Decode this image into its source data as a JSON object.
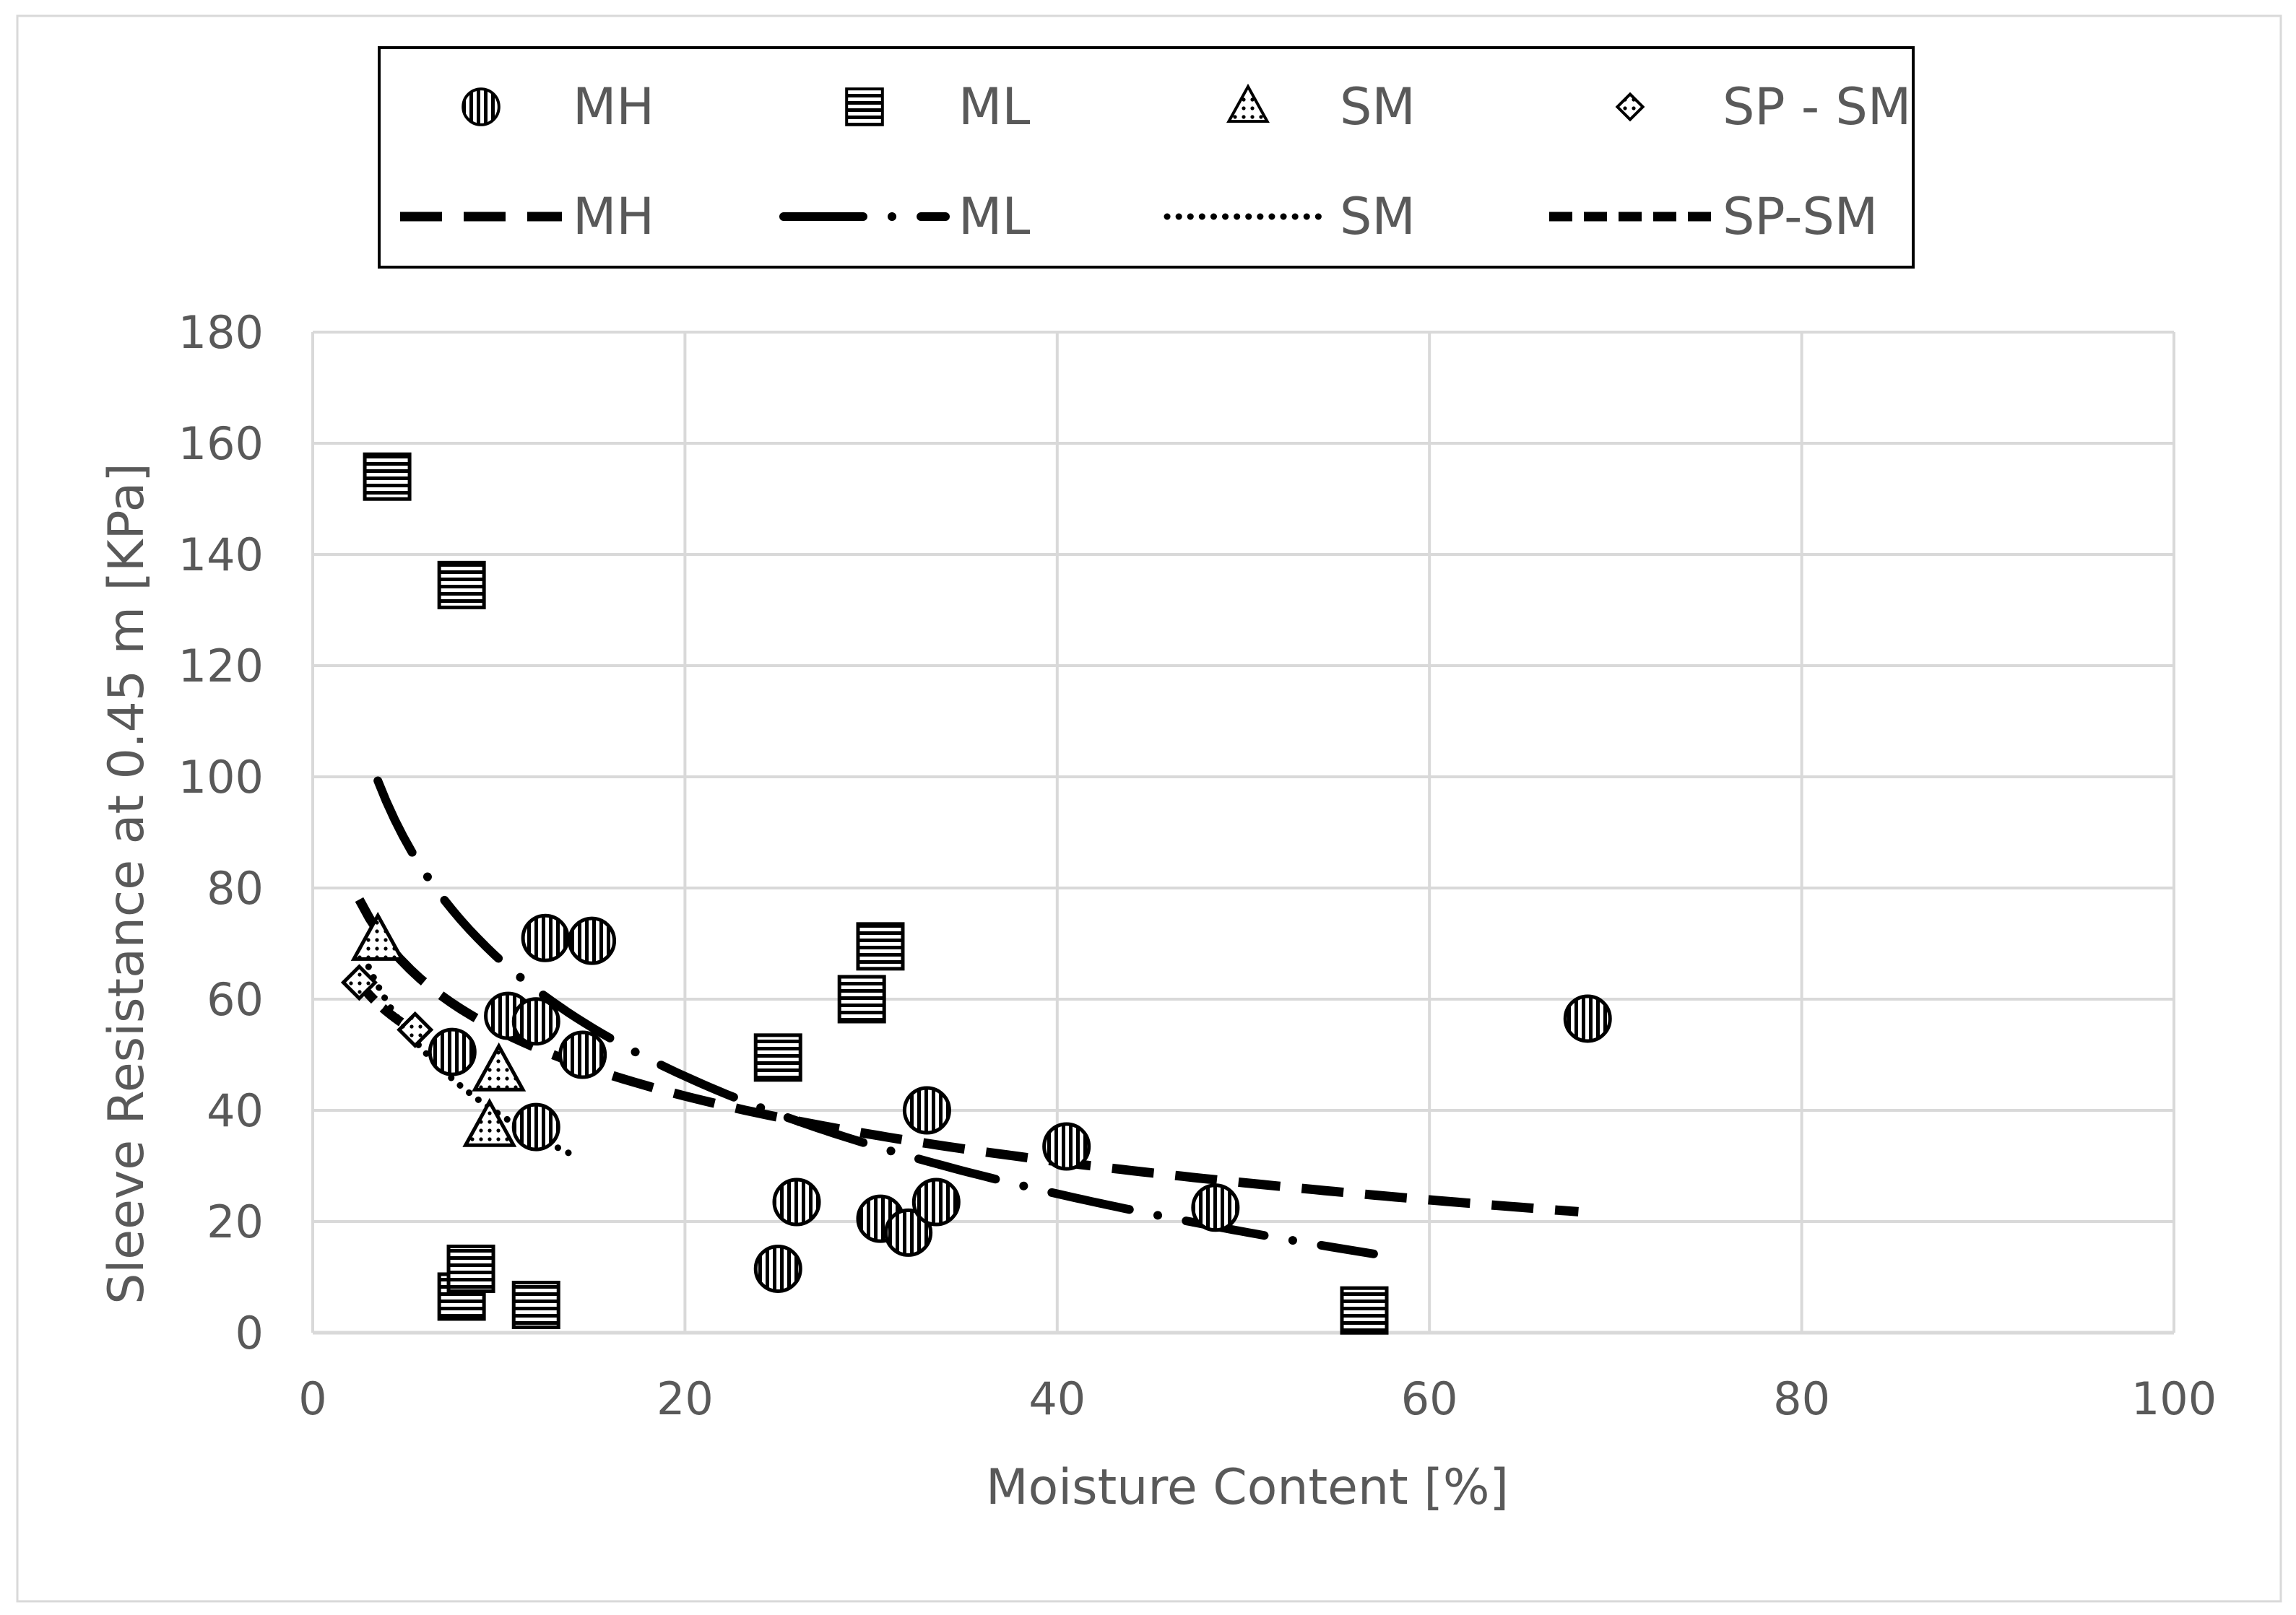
{
  "chart_data": {
    "type": "scatter",
    "xlabel": "Moisture Content [%]",
    "ylabel": "Sleeve Resistance at 0.45 m [KPa]",
    "xlim": [
      0,
      100
    ],
    "ylim": [
      0,
      180
    ],
    "x_ticks": [
      "0",
      "20",
      "40",
      "60",
      "80",
      "100"
    ],
    "y_ticks": [
      "0",
      "20",
      "40",
      "60",
      "80",
      "100",
      "120",
      "140",
      "160",
      "180"
    ],
    "grid": true,
    "legend_position": "top",
    "series": [
      {
        "name": "MH",
        "marker": "circle-vertical-hatch",
        "points": [
          [
            7.5,
            50.5
          ],
          [
            10.5,
            57
          ],
          [
            12,
            56
          ],
          [
            12.5,
            71
          ],
          [
            14.5,
            50
          ],
          [
            15,
            70.5
          ],
          [
            12,
            37
          ],
          [
            25,
            11.5
          ],
          [
            26,
            23.5
          ],
          [
            30.5,
            20.5
          ],
          [
            32,
            18
          ],
          [
            33,
            40
          ],
          [
            33.5,
            23.5
          ],
          [
            40.5,
            33.5
          ],
          [
            48.5,
            22.5
          ],
          [
            68.5,
            56.5
          ]
        ]
      },
      {
        "name": "ML",
        "marker": "square-horizontal-hatch",
        "points": [
          [
            4,
            154
          ],
          [
            8,
            134.5
          ],
          [
            8,
            6.5
          ],
          [
            8.5,
            11.5
          ],
          [
            12,
            5
          ],
          [
            25,
            49.5
          ],
          [
            29.5,
            60
          ],
          [
            30.5,
            69.5
          ],
          [
            56.5,
            4
          ]
        ]
      },
      {
        "name": "SM",
        "marker": "triangle-dotted",
        "points": [
          [
            3.5,
            70.5
          ],
          [
            9.5,
            37
          ],
          [
            10,
            47
          ]
        ]
      },
      {
        "name": "SP - SM",
        "marker": "diamond-small",
        "points": [
          [
            2.5,
            63
          ],
          [
            5.5,
            54.5
          ]
        ]
      }
    ],
    "trendlines": [
      {
        "name": "MH",
        "style": "long-dash",
        "x": [
          2.5,
          68
        ],
        "a": 93.5,
        "b": -17
      },
      {
        "name": "ML",
        "style": "dash-dot",
        "x": [
          3.5,
          57
        ],
        "a": 137.5,
        "b": -30.5
      },
      {
        "name": "SM",
        "style": "dotted",
        "x": [
          3,
          14
        ],
        "a": 90,
        "b": -22
      },
      {
        "name": "SP-SM",
        "style": "short-dash",
        "x": [
          2.5,
          5.5
        ],
        "a": 73,
        "b": -11
      }
    ]
  }
}
